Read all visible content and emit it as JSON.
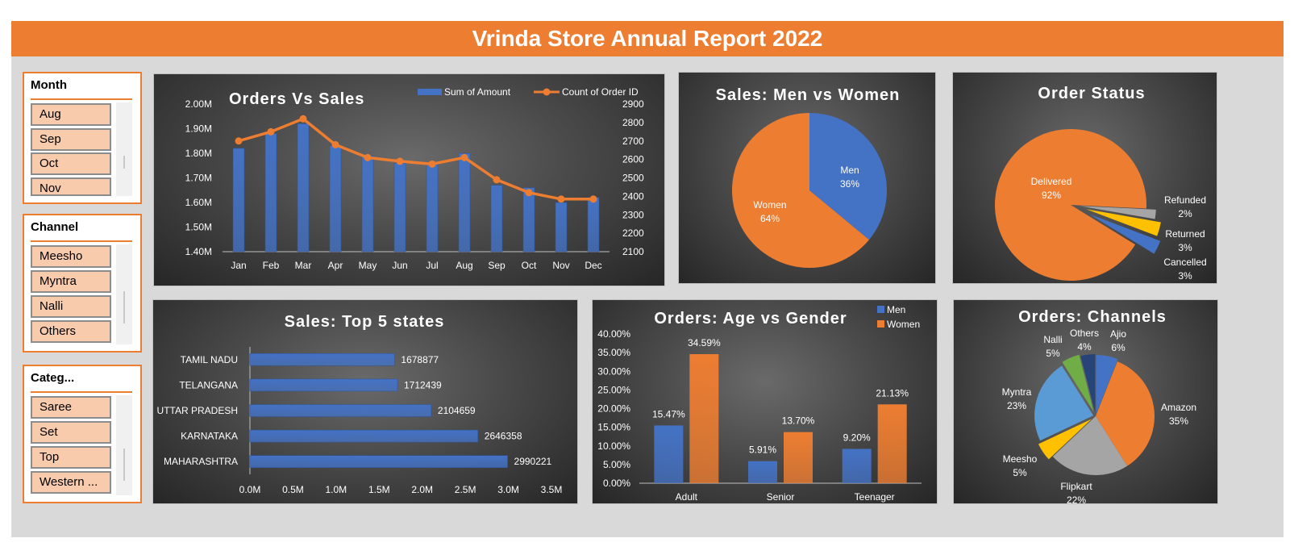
{
  "header": {
    "title": "Vrinda Store Annual Report 2022"
  },
  "slicers": [
    {
      "title": "Month",
      "items": [
        "Aug",
        "Sep",
        "Oct",
        "Nov"
      ]
    },
    {
      "title": "Channel",
      "items": [
        "Meesho",
        "Myntra",
        "Nalli",
        "Others"
      ]
    },
    {
      "title": "Categ...",
      "items": [
        "Saree",
        "Set",
        "Top",
        "Western ..."
      ]
    }
  ],
  "colors": {
    "blue": "#4472c4",
    "orange": "#ed7d31",
    "gray": "#a5a5a5",
    "yellow": "#ffc000",
    "lightblue": "#5b9bd5",
    "green": "#70ad47",
    "navy": "#264478"
  },
  "chart_data": [
    {
      "type": "bar",
      "title": "Orders Vs Sales",
      "categories": [
        "Jan",
        "Feb",
        "Mar",
        "Apr",
        "May",
        "Jun",
        "Jul",
        "Aug",
        "Sep",
        "Oct",
        "Nov",
        "Dec"
      ],
      "series": [
        {
          "name": "Sum of Amount",
          "type": "bar",
          "axis": "left",
          "values": [
            1.82,
            1.88,
            1.92,
            1.83,
            1.79,
            1.76,
            1.76,
            1.8,
            1.67,
            1.66,
            1.6,
            1.62
          ]
        },
        {
          "name": "Count of Order ID",
          "type": "line",
          "axis": "right",
          "values": [
            2700,
            2750,
            2820,
            2680,
            2610,
            2590,
            2575,
            2610,
            2490,
            2420,
            2385,
            2385
          ]
        }
      ],
      "ylim": [
        1.4,
        2.0
      ],
      "yticks": [
        "1.40M",
        "1.50M",
        "1.60M",
        "1.70M",
        "1.80M",
        "1.90M",
        "2.00M"
      ],
      "y2lim": [
        2100,
        2900
      ],
      "y2ticks": [
        "2100",
        "2200",
        "2300",
        "2400",
        "2500",
        "2600",
        "2700",
        "2800",
        "2900"
      ],
      "legend": "top-right"
    },
    {
      "type": "pie",
      "title": "Sales: Men vs Women",
      "slices": [
        {
          "label": "Men",
          "value": 36,
          "display": "36%",
          "color": "#4472c4"
        },
        {
          "label": "Women",
          "value": 64,
          "display": "64%",
          "color": "#ed7d31"
        }
      ]
    },
    {
      "type": "pie",
      "title": "Order Status",
      "slices": [
        {
          "label": "Delivered",
          "value": 92,
          "display": "92%",
          "color": "#ed7d31"
        },
        {
          "label": "Refunded",
          "value": 2,
          "display": "2%",
          "color": "#a5a5a5"
        },
        {
          "label": "Returned",
          "value": 3,
          "display": "3%",
          "color": "#ffc000"
        },
        {
          "label": "Cancelled",
          "value": 3,
          "display": "3%",
          "color": "#4472c4"
        }
      ]
    },
    {
      "type": "bar",
      "orientation": "horizontal",
      "title": "Sales: Top 5 states",
      "categories": [
        "TAMIL NADU",
        "TELANGANA",
        "UTTAR PRADESH",
        "KARNATAKA",
        "MAHARASHTRA"
      ],
      "values": [
        1678877,
        1712439,
        2104659,
        2646358,
        2990221
      ],
      "xlim": [
        0,
        3500000
      ],
      "xticks": [
        "0.0M",
        "0.5M",
        "1.0M",
        "1.5M",
        "2.0M",
        "2.5M",
        "3.0M",
        "3.5M"
      ]
    },
    {
      "type": "bar",
      "title": "Orders: Age vs Gender",
      "categories": [
        "Adult",
        "Senior",
        "Teenager"
      ],
      "series": [
        {
          "name": "Men",
          "values": [
            15.47,
            5.91,
            9.2
          ],
          "labels": [
            "15.47%",
            "5.91%",
            "9.20%"
          ]
        },
        {
          "name": "Women",
          "values": [
            34.59,
            13.7,
            21.13
          ],
          "labels": [
            "34.59%",
            "13.70%",
            "21.13%"
          ]
        }
      ],
      "ylim": [
        0,
        40
      ],
      "yticks": [
        "0.00%",
        "5.00%",
        "10.00%",
        "15.00%",
        "20.00%",
        "25.00%",
        "30.00%",
        "35.00%",
        "40.00%"
      ],
      "legend": "top-right"
    },
    {
      "type": "pie",
      "title": "Orders: Channels",
      "slices": [
        {
          "label": "Ajio",
          "value": 6,
          "display": "6%",
          "color": "#4472c4"
        },
        {
          "label": "Amazon",
          "value": 35,
          "display": "35%",
          "color": "#ed7d31"
        },
        {
          "label": "Flipkart",
          "value": 22,
          "display": "22%",
          "color": "#a5a5a5"
        },
        {
          "label": "Meesho",
          "value": 5,
          "display": "5%",
          "color": "#ffc000"
        },
        {
          "label": "Myntra",
          "value": 23,
          "display": "23%",
          "color": "#5b9bd5"
        },
        {
          "label": "Nalli",
          "value": 5,
          "display": "5%",
          "color": "#70ad47"
        },
        {
          "label": "Others",
          "value": 4,
          "display": "4%",
          "color": "#264478"
        }
      ]
    }
  ]
}
